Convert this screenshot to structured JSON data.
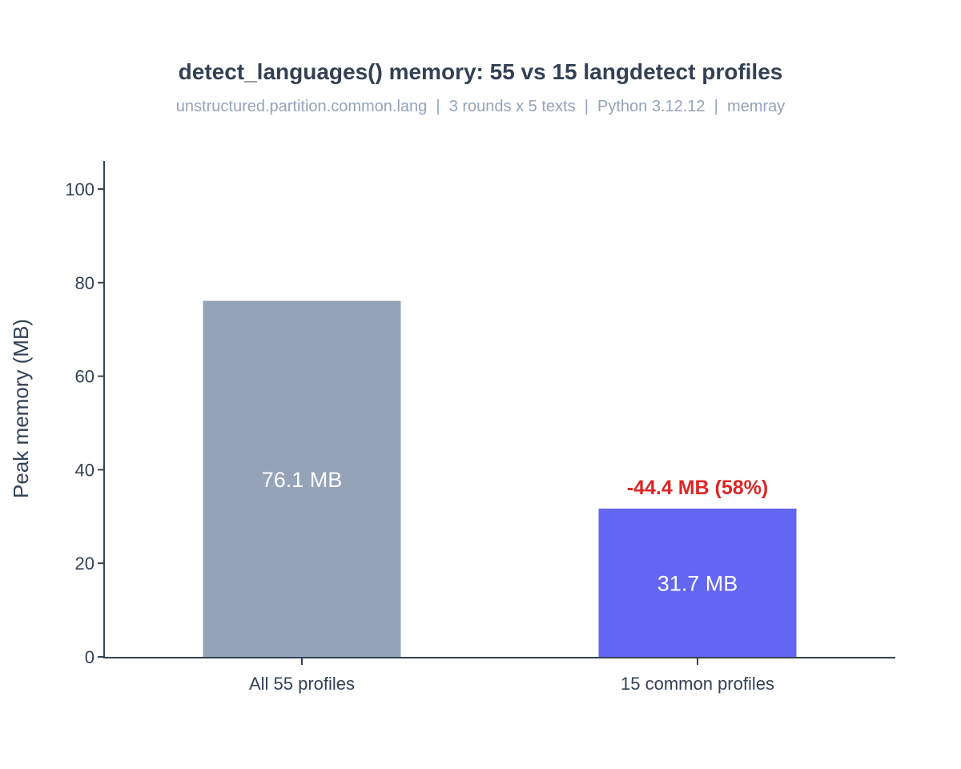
{
  "chart_data": {
    "type": "bar",
    "title": "detect_languages() memory: 55 vs 15 langdetect profiles",
    "subtitle": "unstructured.partition.common.lang  |  3 rounds x 5 texts  |  Python 3.12.12  |  memray",
    "xlabel": "",
    "ylabel": "Peak memory (MB)",
    "categories": [
      "All 55 profiles",
      "15 common profiles"
    ],
    "values": [
      76.1,
      31.7
    ],
    "bar_labels": [
      "76.1 MB",
      "31.7 MB"
    ],
    "bar_colors": [
      "#94a3b8",
      "#6366f1"
    ],
    "ylim": [
      0,
      106
    ],
    "yticks": [
      0,
      20,
      40,
      60,
      80,
      100
    ],
    "grid": false,
    "legend": "none",
    "annotations": [
      {
        "category": "15 common profiles",
        "text": "-44.4 MB (58%)",
        "color": "#dc2626"
      }
    ]
  }
}
